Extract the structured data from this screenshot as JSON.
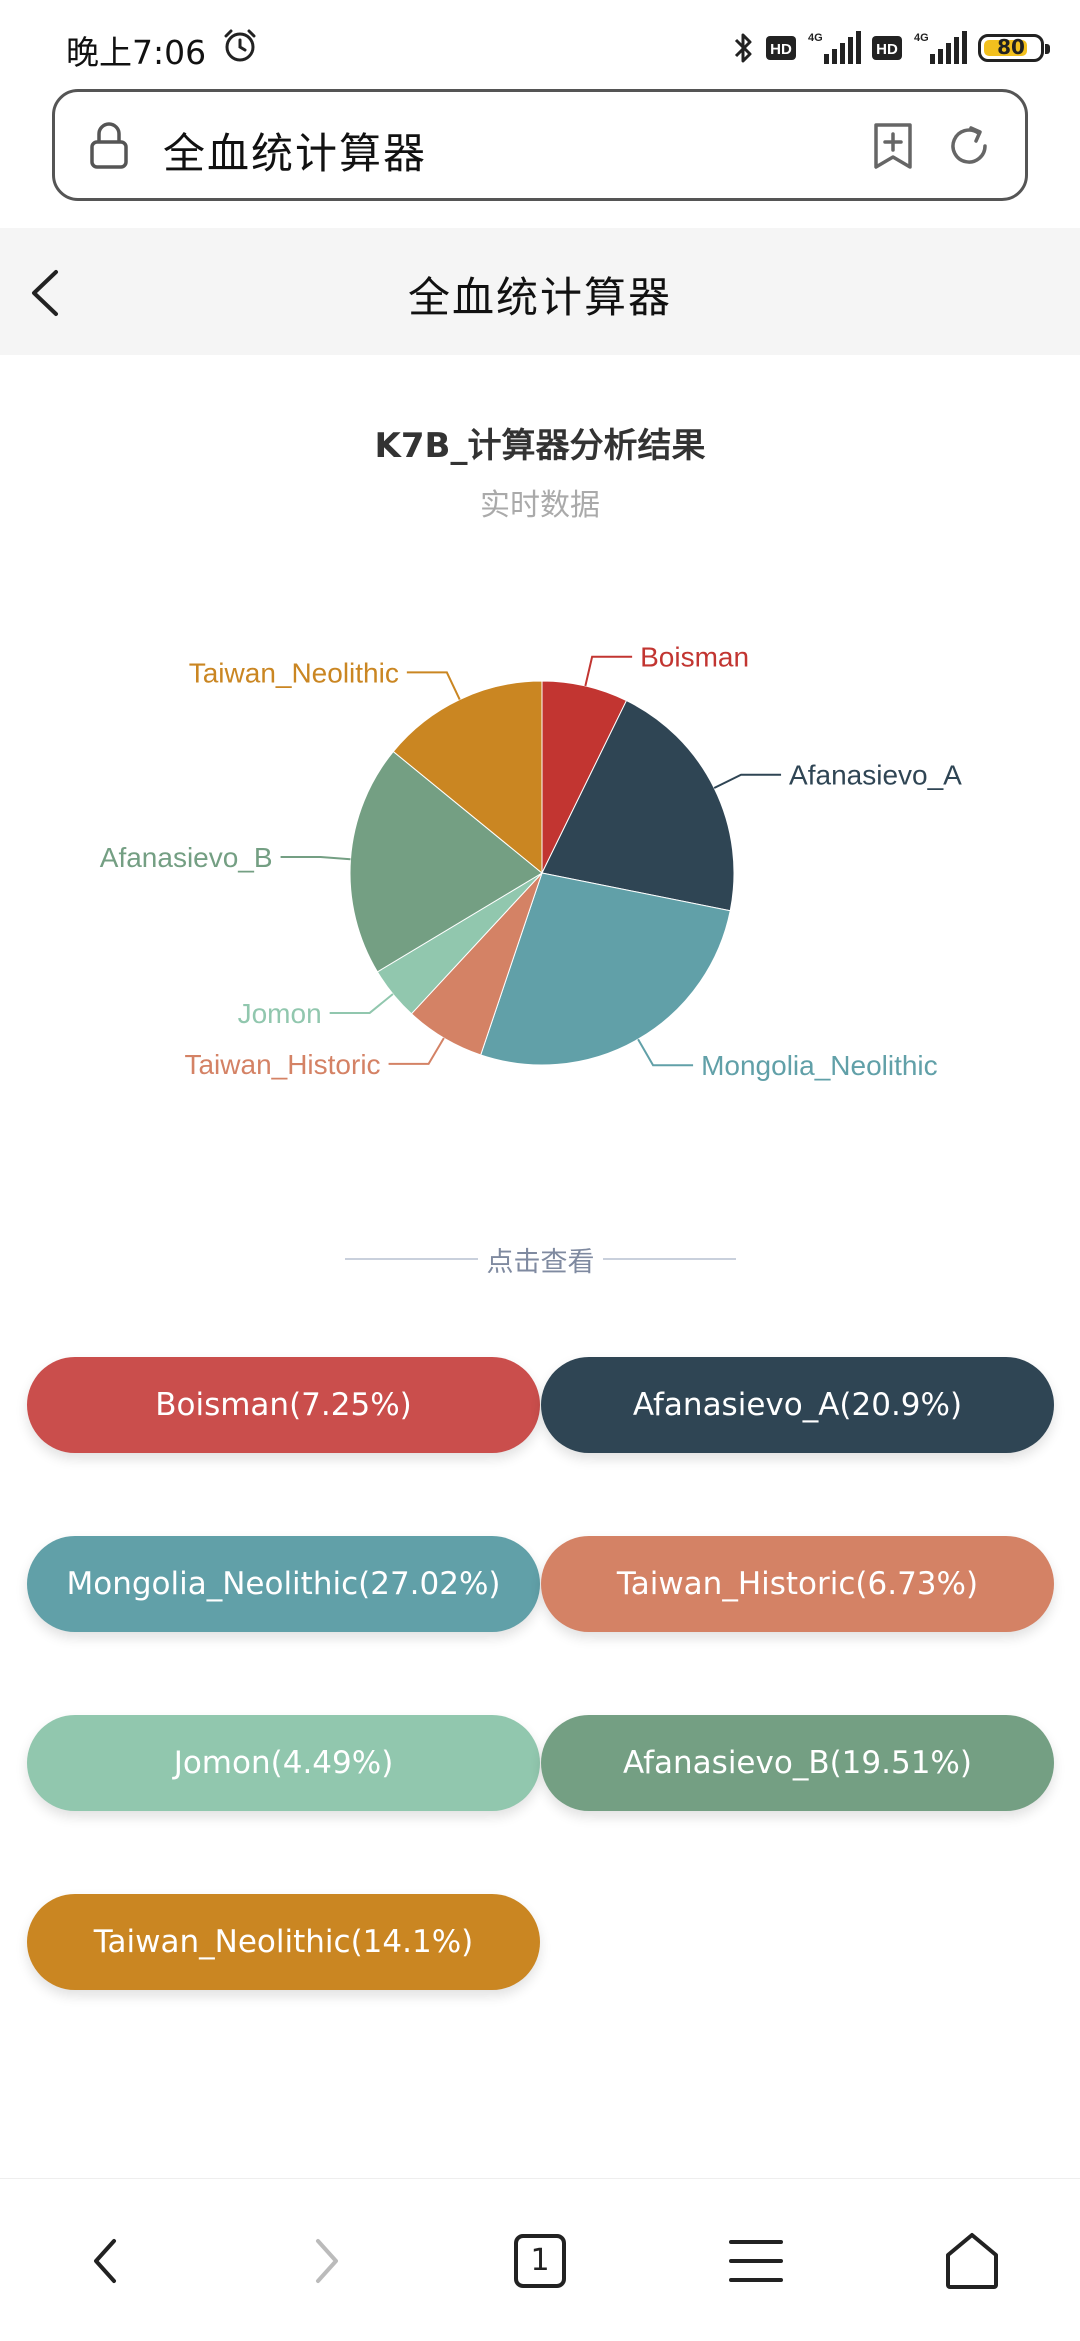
{
  "status_bar": {
    "time": "晚上7:06",
    "hd1": "HD",
    "net1": "4G",
    "hd2": "HD",
    "net2": "4G",
    "battery": "80",
    "battery_percent": 80
  },
  "address_bar": {
    "text": "全血统计算器"
  },
  "header": {
    "title": "全血统计算器"
  },
  "chart": {
    "title": "K7B_计算器分析结果",
    "subtitle": "实时数据"
  },
  "chart_data": {
    "type": "pie",
    "title": "K7B_计算器分析结果",
    "subtitle": "实时数据",
    "slices": [
      {
        "name": "Boisman",
        "value": 7.25,
        "color": "#c23531"
      },
      {
        "name": "Afanasievo_A",
        "value": 20.9,
        "color": "#2f4554"
      },
      {
        "name": "Mongolia_Neolithic",
        "value": 27.02,
        "color": "#61a0a8"
      },
      {
        "name": "Taiwan_Historic",
        "value": 6.73,
        "color": "#d48265"
      },
      {
        "name": "Jomon",
        "value": 4.49,
        "color": "#91c7ae"
      },
      {
        "name": "Afanasievo_B",
        "value": 19.51,
        "color": "#749f83"
      },
      {
        "name": "Taiwan_Neolithic",
        "value": 14.1,
        "color": "#ca8622"
      }
    ]
  },
  "divider": {
    "label": "点击查看"
  },
  "buttons": [
    {
      "label": "Boisman(7.25%)",
      "color": "#ca4e4c"
    },
    {
      "label": "Afanasievo_A(20.9%)",
      "color": "#2f4554"
    },
    {
      "label": "Mongolia_Neolithic(27.02%)",
      "color": "#61a0a8"
    },
    {
      "label": "Taiwan_Historic(6.73%)",
      "color": "#d48265"
    },
    {
      "label": "Jomon(4.49%)",
      "color": "#91c7ae"
    },
    {
      "label": "Afanasievo_B(19.51%)",
      "color": "#749f83"
    },
    {
      "label": "Taiwan_Neolithic(14.1%)",
      "color": "#ca8622"
    }
  ],
  "bottom_nav": {
    "tab_count": "1",
    "icons": [
      "back-icon",
      "forward-icon",
      "tabs-icon",
      "menu-icon",
      "home-icon"
    ]
  }
}
